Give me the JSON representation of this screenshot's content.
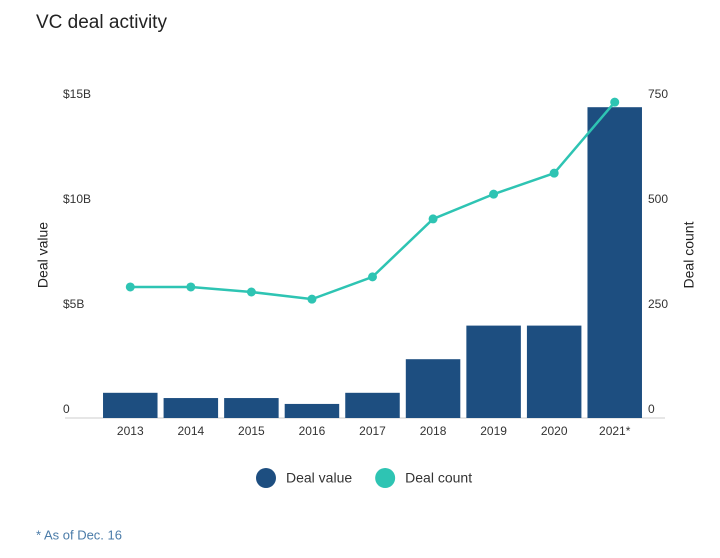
{
  "chart_data": {
    "type": "bar-line",
    "title": "VC deal activity",
    "categories": [
      "2013",
      "2014",
      "2015",
      "2016",
      "2017",
      "2018",
      "2019",
      "2020",
      "2021*"
    ],
    "series": [
      {
        "name": "Deal value",
        "color": "#1d4e80",
        "type": "bar",
        "values": [
          1.2,
          0.95,
          0.95,
          0.67,
          1.2,
          2.8,
          4.4,
          4.4,
          14.8
        ]
      },
      {
        "name": "Deal count",
        "color": "#2ec4b3",
        "type": "line",
        "axis": "y2",
        "values": [
          312,
          312,
          300,
          283,
          336,
          474,
          533,
          583,
          752
        ]
      }
    ],
    "ylabel": "Deal value",
    "y2label": "Deal count",
    "ylim": [
      0,
      15
    ],
    "yticks": [
      0,
      {
        "value": 5,
        "label": "$5B"
      },
      {
        "value": 10,
        "label": "$10B"
      },
      {
        "value": 15,
        "label": "$15B"
      }
    ],
    "y2lim": [
      0,
      750
    ],
    "y2ticks": [
      0,
      250,
      500,
      750
    ],
    "footnote": "* As of Dec. 16"
  }
}
